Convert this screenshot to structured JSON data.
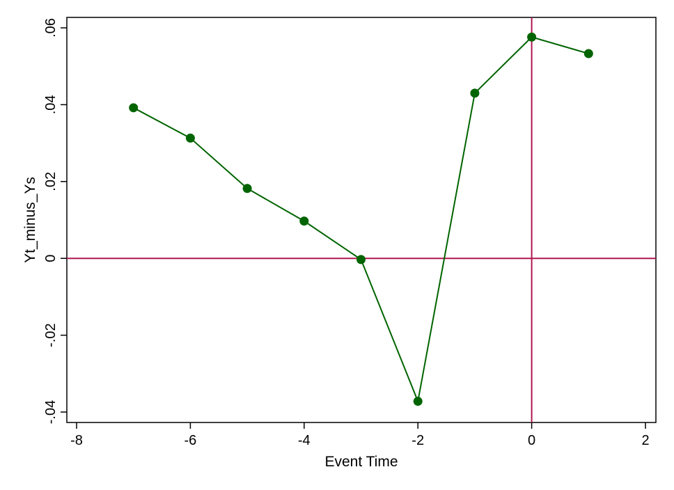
{
  "chart_data": {
    "type": "line",
    "xlabel": "Event Time",
    "ylabel": "Yt_minus_Ys",
    "xlim": [
      -8,
      2
    ],
    "ylim": [
      -0.04,
      0.06
    ],
    "xticks": [
      -8,
      -6,
      -4,
      -2,
      0,
      2
    ],
    "xtick_labels": [
      "-8",
      "-6",
      "-4",
      "-2",
      "0",
      "2"
    ],
    "yticks": [
      -0.04,
      -0.02,
      0,
      0.02,
      0.04,
      0.06
    ],
    "ytick_labels": [
      "-.04",
      "-.02",
      "0",
      ".02",
      ".04",
      ".06"
    ],
    "grid": false,
    "reference_lines": {
      "x": 0,
      "y": 0,
      "color": "#b0174f"
    },
    "series": [
      {
        "color": "#006400",
        "marker": "circle",
        "x": [
          -7,
          -6,
          -5,
          -4,
          -3,
          -2,
          -1,
          0,
          1
        ],
        "y": [
          0.0392,
          0.0313,
          0.0182,
          0.0097,
          -0.0003,
          -0.0372,
          0.043,
          0.0576,
          0.0533
        ]
      }
    ]
  }
}
